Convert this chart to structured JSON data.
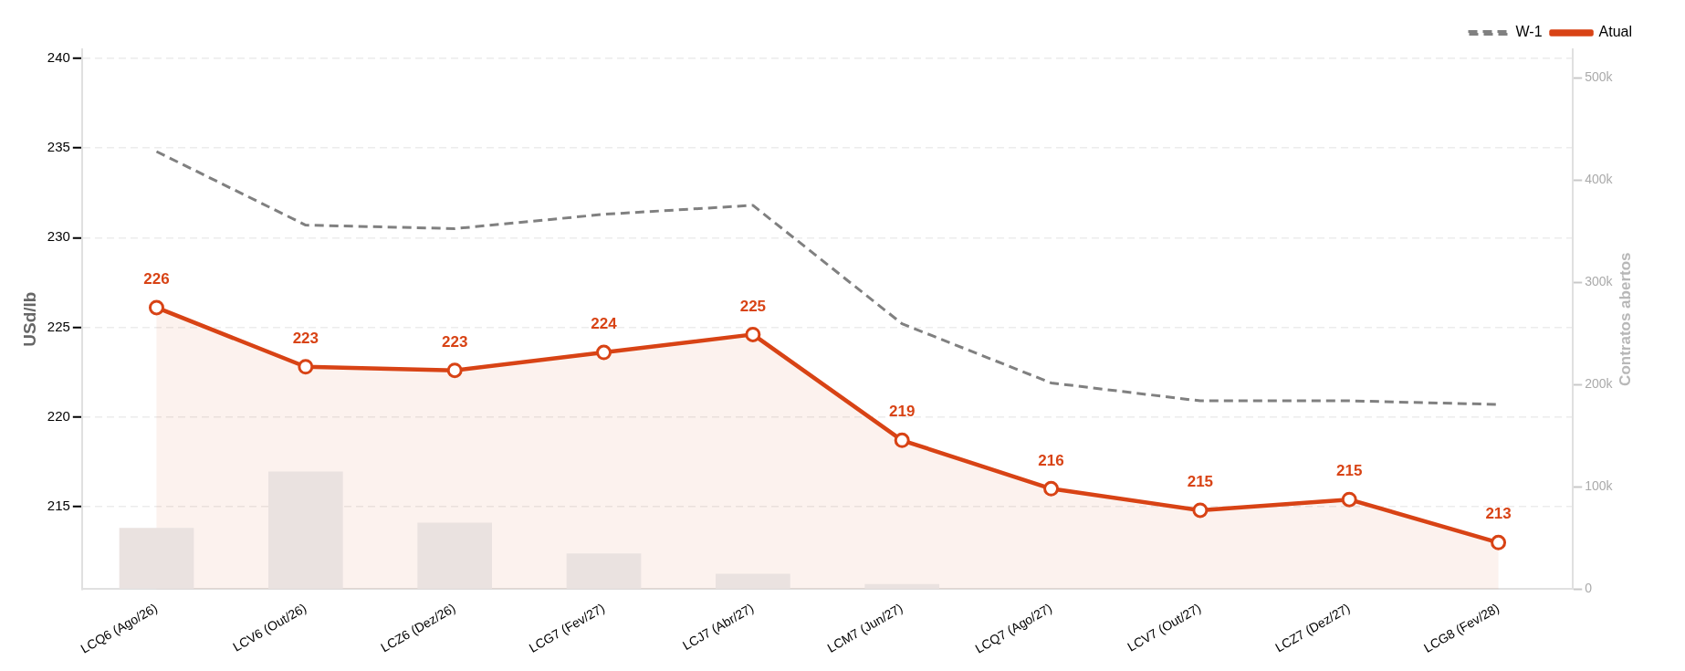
{
  "chart_data": {
    "type": "line",
    "categories": [
      "LCQ6 (Ago/26)",
      "LCV6 (Out/26)",
      "LCZ6 (Dez/26)",
      "LCG7 (Fev/27)",
      "LCJ7 (Abr/27)",
      "LCM7 (Jun/27)",
      "LCQ7 (Ago/27)",
      "LCV7 (Out/27)",
      "LCZ7 (Dez/27)",
      "LCG8 (Fev/28)"
    ],
    "ylabel": "USd/lb",
    "y2label": "Contratos abertos",
    "ylim": [
      210.4,
      240.5
    ],
    "yticks": [
      215,
      220,
      225,
      230,
      235,
      240
    ],
    "y2lim": [
      0,
      528000
    ],
    "y2ticks": [
      {
        "value": 0,
        "label": "0"
      },
      {
        "value": 100000,
        "label": "100k"
      },
      {
        "value": 200000,
        "label": "200k"
      },
      {
        "value": 300000,
        "label": "300k"
      },
      {
        "value": 400000,
        "label": "400k"
      },
      {
        "value": 500000,
        "label": "500k"
      }
    ],
    "grid": "y",
    "legend": "top right",
    "marker": "circle",
    "series": [
      {
        "type": "bar",
        "axis": "y2",
        "color": "#eae2e0",
        "values": [
          60000,
          115000,
          65000,
          35000,
          15000,
          5000,
          null,
          0,
          0,
          0
        ]
      },
      {
        "name": "W-1",
        "line_style": "dashed",
        "marker": "none",
        "color": "#808080",
        "values": [
          234.8,
          230.7,
          230.5,
          231.3,
          231.8,
          225.2,
          221.9,
          220.9,
          220.9,
          220.7
        ]
      },
      {
        "name": "Atual",
        "type": "area",
        "color": "#d84315",
        "values": [
          226.1,
          222.8,
          222.6,
          223.6,
          224.6,
          218.7,
          216.0,
          214.8,
          215.4,
          213.0
        ],
        "value_labels": [
          "226",
          "223",
          "223",
          "224",
          "225",
          "219",
          "216",
          "215",
          "215",
          "213"
        ]
      }
    ]
  }
}
